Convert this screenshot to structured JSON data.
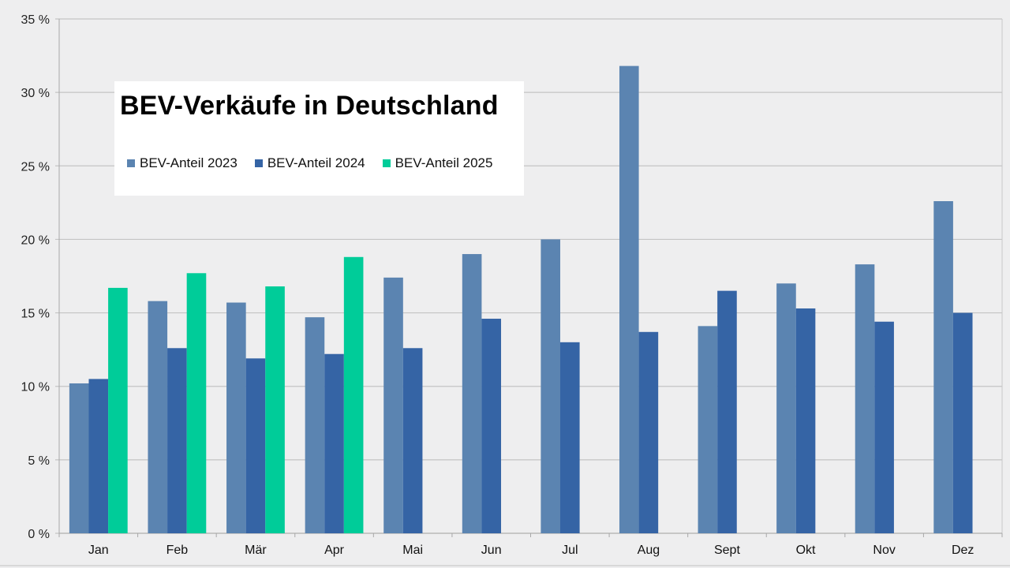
{
  "chart_data": {
    "type": "bar",
    "title": "BEV-Verkäufe in Deutschland",
    "xlabel": "",
    "ylabel": "",
    "ylim": [
      0,
      35
    ],
    "y_ticks": [
      "0 %",
      "5 %",
      "10 %",
      "15 %",
      "20 %",
      "25 %",
      "30 %",
      "35 %"
    ],
    "y_tick_values": [
      0,
      5,
      10,
      15,
      20,
      25,
      30,
      35
    ],
    "grid": true,
    "legend_placement": "top-left (inside title box)",
    "categories": [
      "Jan",
      "Feb",
      "Mär",
      "Apr",
      "Mai",
      "Jun",
      "Jul",
      "Aug",
      "Sept",
      "Okt",
      "Nov",
      "Dez"
    ],
    "series": [
      {
        "name": "BEV-Anteil 2023",
        "color": "#5b84b1",
        "values": [
          10.2,
          15.8,
          15.7,
          14.7,
          17.4,
          19.0,
          20.0,
          31.8,
          14.1,
          17.0,
          18.3,
          22.6
        ]
      },
      {
        "name": "BEV-Anteil 2024",
        "color": "#3564a5",
        "values": [
          10.5,
          12.6,
          11.9,
          12.2,
          12.6,
          14.6,
          13.0,
          13.7,
          16.5,
          15.3,
          14.4,
          15.0
        ]
      },
      {
        "name": "BEV-Anteil 2025",
        "color": "#00cc99",
        "values": [
          16.7,
          17.7,
          16.8,
          18.8,
          null,
          null,
          null,
          null,
          null,
          null,
          null,
          null
        ]
      }
    ]
  }
}
